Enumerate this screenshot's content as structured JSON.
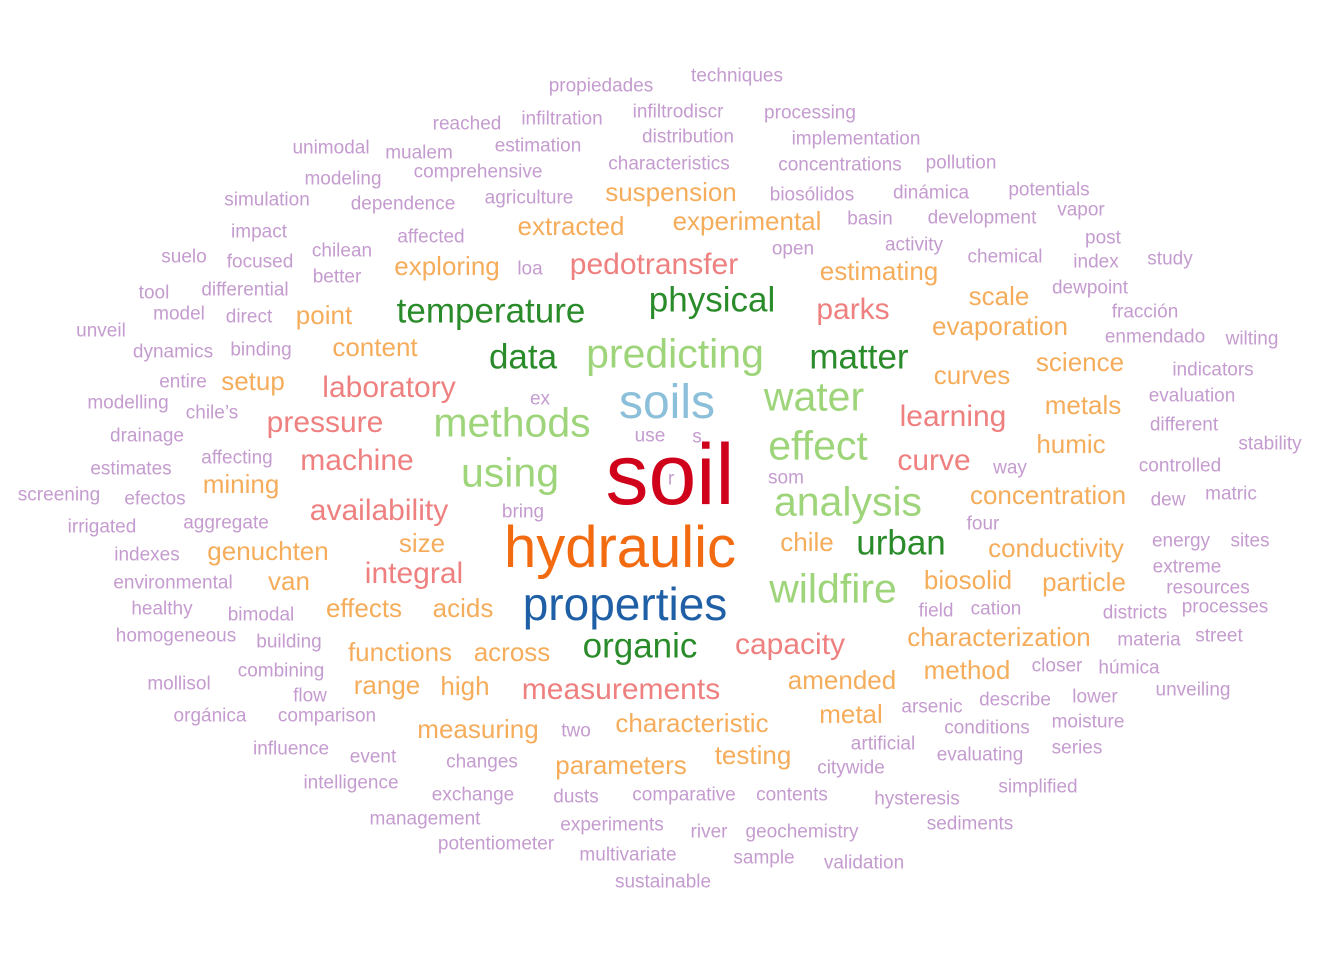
{
  "palette": {
    "crimson": "#d0021b",
    "orange": "#f26b10",
    "blue": "#1f5fa6",
    "skyblue": "#8cbfd9",
    "darkgreen": "#2a8b2a",
    "lightgreen": "#9fd57a",
    "salmon": "#ef8080",
    "amber": "#f5ad5c",
    "lavender": "#c59ccf"
  },
  "words": [
    {
      "text": "soil",
      "color": "crimson"
    },
    {
      "text": "hydraulic",
      "color": "orange"
    },
    {
      "text": "properties",
      "color": "blue"
    },
    {
      "text": "soils",
      "color": "skyblue"
    },
    {
      "text": "predicting",
      "color": "lightgreen"
    },
    {
      "text": "methods",
      "color": "lightgreen"
    },
    {
      "text": "water",
      "color": "lightgreen"
    },
    {
      "text": "effect",
      "color": "lightgreen"
    },
    {
      "text": "analysis",
      "color": "lightgreen"
    },
    {
      "text": "wildfire",
      "color": "lightgreen"
    },
    {
      "text": "using",
      "color": "lightgreen"
    },
    {
      "text": "temperature",
      "color": "darkgreen"
    },
    {
      "text": "physical",
      "color": "darkgreen"
    },
    {
      "text": "data",
      "color": "darkgreen"
    },
    {
      "text": "matter",
      "color": "darkgreen"
    },
    {
      "text": "organic",
      "color": "darkgreen"
    },
    {
      "text": "urban",
      "color": "darkgreen"
    },
    {
      "text": "pedotransfer",
      "color": "salmon"
    },
    {
      "text": "parks",
      "color": "salmon"
    },
    {
      "text": "laboratory",
      "color": "salmon"
    },
    {
      "text": "pressure",
      "color": "salmon"
    },
    {
      "text": "learning",
      "color": "salmon"
    },
    {
      "text": "machine",
      "color": "salmon"
    },
    {
      "text": "curve",
      "color": "salmon"
    },
    {
      "text": "availability",
      "color": "salmon"
    },
    {
      "text": "integral",
      "color": "salmon"
    },
    {
      "text": "capacity",
      "color": "salmon"
    },
    {
      "text": "measurements",
      "color": "salmon"
    },
    {
      "text": "suspension",
      "color": "amber"
    },
    {
      "text": "experimental",
      "color": "amber"
    },
    {
      "text": "extracted",
      "color": "amber"
    },
    {
      "text": "exploring",
      "color": "amber"
    },
    {
      "text": "estimating",
      "color": "amber"
    },
    {
      "text": "scale",
      "color": "amber"
    },
    {
      "text": "point",
      "color": "amber"
    },
    {
      "text": "evaporation",
      "color": "amber"
    },
    {
      "text": "content",
      "color": "amber"
    },
    {
      "text": "science",
      "color": "amber"
    },
    {
      "text": "curves",
      "color": "amber"
    },
    {
      "text": "setup",
      "color": "amber"
    },
    {
      "text": "metals",
      "color": "amber"
    },
    {
      "text": "humic",
      "color": "amber"
    },
    {
      "text": "mining",
      "color": "amber"
    },
    {
      "text": "concentration",
      "color": "amber"
    },
    {
      "text": "size",
      "color": "amber"
    },
    {
      "text": "chile",
      "color": "amber"
    },
    {
      "text": "genuchten",
      "color": "amber"
    },
    {
      "text": "conductivity",
      "color": "amber"
    },
    {
      "text": "van",
      "color": "amber"
    },
    {
      "text": "biosolid",
      "color": "amber"
    },
    {
      "text": "particle",
      "color": "amber"
    },
    {
      "text": "effects",
      "color": "amber"
    },
    {
      "text": "acids",
      "color": "amber"
    },
    {
      "text": "characterization",
      "color": "amber"
    },
    {
      "text": "functions",
      "color": "amber"
    },
    {
      "text": "across",
      "color": "amber"
    },
    {
      "text": "method",
      "color": "amber"
    },
    {
      "text": "range",
      "color": "amber"
    },
    {
      "text": "high",
      "color": "amber"
    },
    {
      "text": "amended",
      "color": "amber"
    },
    {
      "text": "metal",
      "color": "amber"
    },
    {
      "text": "measuring",
      "color": "amber"
    },
    {
      "text": "characteristic",
      "color": "amber"
    },
    {
      "text": "testing",
      "color": "amber"
    },
    {
      "text": "parameters",
      "color": "amber"
    },
    {
      "text": "propiedades",
      "color": "lavender"
    },
    {
      "text": "techniques",
      "color": "lavender"
    },
    {
      "text": "reached",
      "color": "lavender"
    },
    {
      "text": "infiltration",
      "color": "lavender"
    },
    {
      "text": "infiltrodiscr",
      "color": "lavender"
    },
    {
      "text": "processing",
      "color": "lavender"
    },
    {
      "text": "distribution",
      "color": "lavender"
    },
    {
      "text": "implementation",
      "color": "lavender"
    },
    {
      "text": "unimodal",
      "color": "lavender"
    },
    {
      "text": "mualem",
      "color": "lavender"
    },
    {
      "text": "estimation",
      "color": "lavender"
    },
    {
      "text": "characteristics",
      "color": "lavender"
    },
    {
      "text": "concentrations",
      "color": "lavender"
    },
    {
      "text": "pollution",
      "color": "lavender"
    },
    {
      "text": "modeling",
      "color": "lavender"
    },
    {
      "text": "comprehensive",
      "color": "lavender"
    },
    {
      "text": "simulation",
      "color": "lavender"
    },
    {
      "text": "dependence",
      "color": "lavender"
    },
    {
      "text": "agriculture",
      "color": "lavender"
    },
    {
      "text": "biosólidos",
      "color": "lavender"
    },
    {
      "text": "dinámica",
      "color": "lavender"
    },
    {
      "text": "potentials",
      "color": "lavender"
    },
    {
      "text": "basin",
      "color": "lavender"
    },
    {
      "text": "development",
      "color": "lavender"
    },
    {
      "text": "vapor",
      "color": "lavender"
    },
    {
      "text": "impact",
      "color": "lavender"
    },
    {
      "text": "affected",
      "color": "lavender"
    },
    {
      "text": "chilean",
      "color": "lavender"
    },
    {
      "text": "activity",
      "color": "lavender"
    },
    {
      "text": "post",
      "color": "lavender"
    },
    {
      "text": "suelo",
      "color": "lavender"
    },
    {
      "text": "focused",
      "color": "lavender"
    },
    {
      "text": "open",
      "color": "lavender"
    },
    {
      "text": "chemical",
      "color": "lavender"
    },
    {
      "text": "index",
      "color": "lavender"
    },
    {
      "text": "study",
      "color": "lavender"
    },
    {
      "text": "better",
      "color": "lavender"
    },
    {
      "text": "loa",
      "color": "lavender"
    },
    {
      "text": "tool",
      "color": "lavender"
    },
    {
      "text": "differential",
      "color": "lavender"
    },
    {
      "text": "dewpoint",
      "color": "lavender"
    },
    {
      "text": "model",
      "color": "lavender"
    },
    {
      "text": "direct",
      "color": "lavender"
    },
    {
      "text": "fracción",
      "color": "lavender"
    },
    {
      "text": "unveil",
      "color": "lavender"
    },
    {
      "text": "enmendado",
      "color": "lavender"
    },
    {
      "text": "wilting",
      "color": "lavender"
    },
    {
      "text": "dynamics",
      "color": "lavender"
    },
    {
      "text": "binding",
      "color": "lavender"
    },
    {
      "text": "indicators",
      "color": "lavender"
    },
    {
      "text": "entire",
      "color": "lavender"
    },
    {
      "text": "evaluation",
      "color": "lavender"
    },
    {
      "text": "modelling",
      "color": "lavender"
    },
    {
      "text": "chile’s",
      "color": "lavender"
    },
    {
      "text": "ex",
      "color": "lavender"
    },
    {
      "text": "different",
      "color": "lavender"
    },
    {
      "text": "drainage",
      "color": "lavender"
    },
    {
      "text": "use",
      "color": "lavender"
    },
    {
      "text": "s",
      "color": "lavender"
    },
    {
      "text": "stability",
      "color": "lavender"
    },
    {
      "text": "affecting",
      "color": "lavender"
    },
    {
      "text": "estimates",
      "color": "lavender"
    },
    {
      "text": "way",
      "color": "lavender"
    },
    {
      "text": "controlled",
      "color": "lavender"
    },
    {
      "text": "som",
      "color": "lavender"
    },
    {
      "text": "r",
      "color": "lavender"
    },
    {
      "text": "screening",
      "color": "lavender"
    },
    {
      "text": "efectos",
      "color": "lavender"
    },
    {
      "text": "matric",
      "color": "lavender"
    },
    {
      "text": "dew",
      "color": "lavender"
    },
    {
      "text": "bring",
      "color": "lavender"
    },
    {
      "text": "irrigated",
      "color": "lavender"
    },
    {
      "text": "aggregate",
      "color": "lavender"
    },
    {
      "text": "four",
      "color": "lavender"
    },
    {
      "text": "energy",
      "color": "lavender"
    },
    {
      "text": "sites",
      "color": "lavender"
    },
    {
      "text": "indexes",
      "color": "lavender"
    },
    {
      "text": "extreme",
      "color": "lavender"
    },
    {
      "text": "environmental",
      "color": "lavender"
    },
    {
      "text": "resources",
      "color": "lavender"
    },
    {
      "text": "healthy",
      "color": "lavender"
    },
    {
      "text": "bimodal",
      "color": "lavender"
    },
    {
      "text": "field",
      "color": "lavender"
    },
    {
      "text": "cation",
      "color": "lavender"
    },
    {
      "text": "districts",
      "color": "lavender"
    },
    {
      "text": "processes",
      "color": "lavender"
    },
    {
      "text": "homogeneous",
      "color": "lavender"
    },
    {
      "text": "building",
      "color": "lavender"
    },
    {
      "text": "materia",
      "color": "lavender"
    },
    {
      "text": "street",
      "color": "lavender"
    },
    {
      "text": "combining",
      "color": "lavender"
    },
    {
      "text": "closer",
      "color": "lavender"
    },
    {
      "text": "húmica",
      "color": "lavender"
    },
    {
      "text": "mollisol",
      "color": "lavender"
    },
    {
      "text": "flow",
      "color": "lavender"
    },
    {
      "text": "describe",
      "color": "lavender"
    },
    {
      "text": "lower",
      "color": "lavender"
    },
    {
      "text": "unveiling",
      "color": "lavender"
    },
    {
      "text": "orgánica",
      "color": "lavender"
    },
    {
      "text": "comparison",
      "color": "lavender"
    },
    {
      "text": "arsenic",
      "color": "lavender"
    },
    {
      "text": "moisture",
      "color": "lavender"
    },
    {
      "text": "two",
      "color": "lavender"
    },
    {
      "text": "conditions",
      "color": "lavender"
    },
    {
      "text": "influence",
      "color": "lavender"
    },
    {
      "text": "artificial",
      "color": "lavender"
    },
    {
      "text": "series",
      "color": "lavender"
    },
    {
      "text": "event",
      "color": "lavender"
    },
    {
      "text": "changes",
      "color": "lavender"
    },
    {
      "text": "evaluating",
      "color": "lavender"
    },
    {
      "text": "citywide",
      "color": "lavender"
    },
    {
      "text": "intelligence",
      "color": "lavender"
    },
    {
      "text": "simplified",
      "color": "lavender"
    },
    {
      "text": "exchange",
      "color": "lavender"
    },
    {
      "text": "dusts",
      "color": "lavender"
    },
    {
      "text": "comparative",
      "color": "lavender"
    },
    {
      "text": "contents",
      "color": "lavender"
    },
    {
      "text": "hysteresis",
      "color": "lavender"
    },
    {
      "text": "management",
      "color": "lavender"
    },
    {
      "text": "experiments",
      "color": "lavender"
    },
    {
      "text": "sediments",
      "color": "lavender"
    },
    {
      "text": "river",
      "color": "lavender"
    },
    {
      "text": "geochemistry",
      "color": "lavender"
    },
    {
      "text": "potentiometer",
      "color": "lavender"
    },
    {
      "text": "multivariate",
      "color": "lavender"
    },
    {
      "text": "sample",
      "color": "lavender"
    },
    {
      "text": "validation",
      "color": "lavender"
    },
    {
      "text": "sustainable",
      "color": "lavender"
    }
  ]
}
